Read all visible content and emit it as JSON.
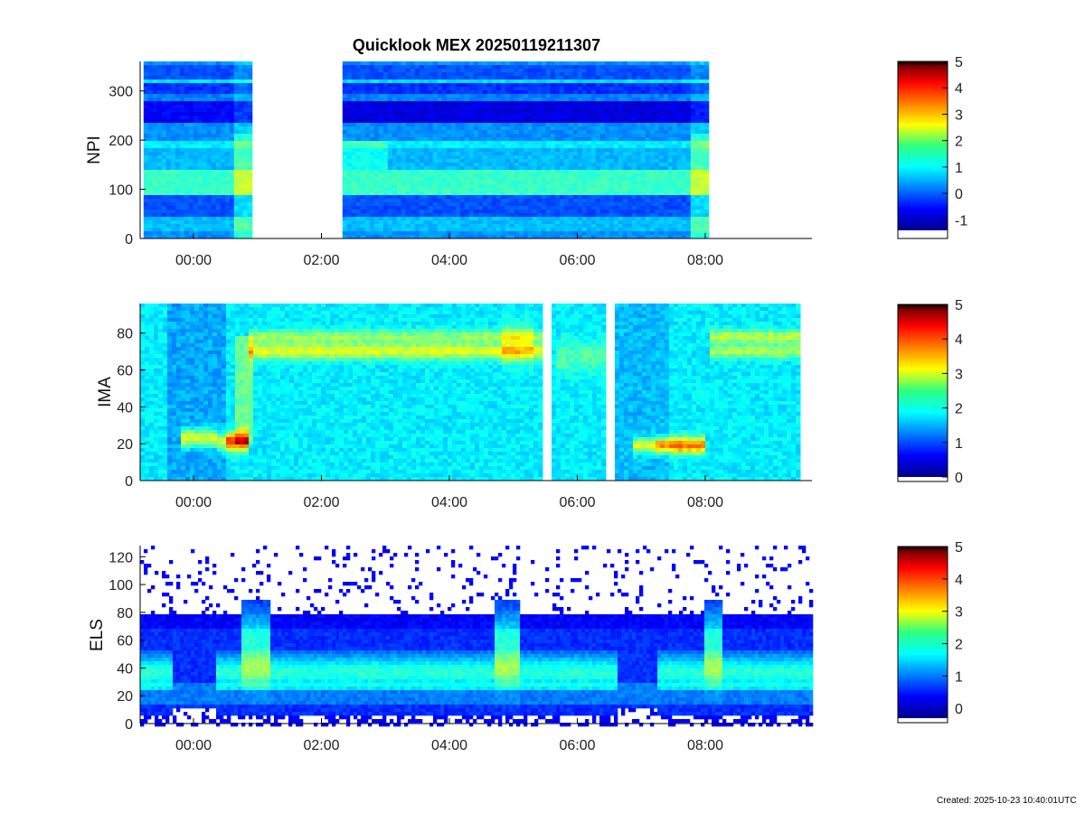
{
  "chart_data": {
    "title": "Quicklook MEX 20250119211307",
    "type": "heatmap",
    "x_tick_labels": [
      "00:00",
      "02:00",
      "04:00",
      "06:00",
      "08:00"
    ],
    "panels": [
      {
        "name": "NPI",
        "ylabel": "NPI",
        "yrange": [
          0,
          360
        ],
        "yticks": [
          0,
          100,
          200,
          300
        ],
        "colorbar": {
          "min": -1.4,
          "max": 5,
          "ticks": [
            -1,
            0,
            1,
            2,
            3,
            4,
            5
          ]
        }
      },
      {
        "name": "IMA",
        "ylabel": "IMA",
        "yrange": [
          0,
          96
        ],
        "yticks": [
          0,
          20,
          40,
          60,
          80
        ],
        "colorbar": {
          "min": 0,
          "max": 5,
          "ticks": [
            0,
            1,
            2,
            3,
            4,
            5
          ]
        }
      },
      {
        "name": "ELS",
        "ylabel": "ELS",
        "yrange": [
          0,
          128
        ],
        "yticks": [
          0,
          20,
          40,
          60,
          80,
          100,
          120
        ],
        "colorbar": {
          "min": -0.3,
          "max": 5,
          "ticks": [
            0,
            1,
            2,
            3,
            4,
            5
          ]
        }
      }
    ]
  },
  "footer": {
    "created": "Created: 2025-10-23 10:40:01UTC"
  }
}
